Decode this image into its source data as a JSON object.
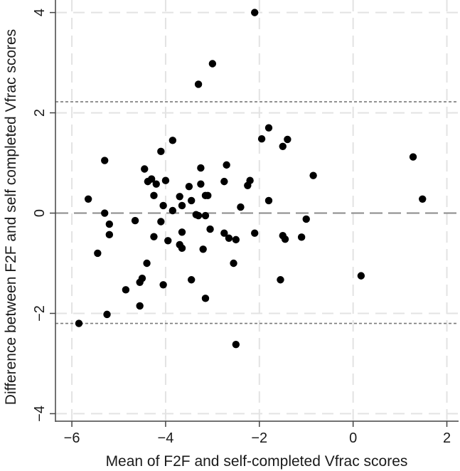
{
  "chart_data": {
    "type": "scatter",
    "title": "",
    "xlabel": "Mean of F2F and self-completed Vfrac scores",
    "ylabel": "Difference between F2F and self completed Vfrac scores",
    "xlim": [
      -6.35,
      2.25
    ],
    "ylim": [
      -4.15,
      4.25
    ],
    "xticks": [
      -6,
      -4,
      -2,
      0,
      2
    ],
    "yticks": [
      -4,
      -2,
      0,
      2,
      4
    ],
    "xtick_labels": [
      "−6",
      "−4",
      "−2",
      "0",
      "2"
    ],
    "ytick_labels": [
      "−4",
      "−2",
      "0",
      "2",
      "4"
    ],
    "grid": true,
    "reference_lines": [
      {
        "kind": "mean",
        "value": 0.0,
        "style": "dashed"
      },
      {
        "kind": "upper-limit",
        "value": 2.22,
        "style": "dotted"
      },
      {
        "kind": "lower-limit",
        "value": -2.2,
        "style": "dotted"
      }
    ],
    "points": [
      {
        "x": -2.1,
        "y": 4.0
      },
      {
        "x": -3.0,
        "y": 2.98
      },
      {
        "x": -3.3,
        "y": 2.57
      },
      {
        "x": -1.8,
        "y": 1.7
      },
      {
        "x": -1.95,
        "y": 1.48
      },
      {
        "x": -1.4,
        "y": 1.47
      },
      {
        "x": -1.5,
        "y": 1.33
      },
      {
        "x": 1.28,
        "y": 1.12
      },
      {
        "x": -5.3,
        "y": 1.05
      },
      {
        "x": -3.85,
        "y": 1.45
      },
      {
        "x": -4.1,
        "y": 1.23
      },
      {
        "x": -2.7,
        "y": 0.96
      },
      {
        "x": -4.45,
        "y": 0.88
      },
      {
        "x": -3.25,
        "y": 0.9
      },
      {
        "x": -0.85,
        "y": 0.75
      },
      {
        "x": -4.3,
        "y": 0.68
      },
      {
        "x": -4.38,
        "y": 0.63
      },
      {
        "x": -4.0,
        "y": 0.65
      },
      {
        "x": -2.75,
        "y": 0.63
      },
      {
        "x": -2.2,
        "y": 0.65
      },
      {
        "x": -4.2,
        "y": 0.58
      },
      {
        "x": -3.5,
        "y": 0.53
      },
      {
        "x": -3.25,
        "y": 0.58
      },
      {
        "x": -2.25,
        "y": 0.55
      },
      {
        "x": -4.25,
        "y": 0.35
      },
      {
        "x": -3.7,
        "y": 0.33
      },
      {
        "x": -3.15,
        "y": 0.35
      },
      {
        "x": -3.1,
        "y": 0.35
      },
      {
        "x": -5.65,
        "y": 0.28
      },
      {
        "x": -1.8,
        "y": 0.25
      },
      {
        "x": 1.48,
        "y": 0.28
      },
      {
        "x": -3.45,
        "y": 0.25
      },
      {
        "x": -4.05,
        "y": 0.15
      },
      {
        "x": -3.65,
        "y": 0.15
      },
      {
        "x": -2.4,
        "y": 0.12
      },
      {
        "x": -3.85,
        "y": 0.05
      },
      {
        "x": -5.3,
        "y": 0.0
      },
      {
        "x": -3.35,
        "y": -0.03
      },
      {
        "x": -3.3,
        "y": -0.05
      },
      {
        "x": -3.15,
        "y": -0.05
      },
      {
        "x": -1.0,
        "y": -0.12
      },
      {
        "x": -4.65,
        "y": -0.15
      },
      {
        "x": -4.1,
        "y": -0.17
      },
      {
        "x": -5.2,
        "y": -0.22
      },
      {
        "x": -3.05,
        "y": -0.32
      },
      {
        "x": -3.65,
        "y": -0.38
      },
      {
        "x": -2.75,
        "y": -0.4
      },
      {
        "x": -2.1,
        "y": -0.4
      },
      {
        "x": -5.2,
        "y": -0.43
      },
      {
        "x": -4.25,
        "y": -0.47
      },
      {
        "x": -1.5,
        "y": -0.45
      },
      {
        "x": -1.1,
        "y": -0.48
      },
      {
        "x": -2.65,
        "y": -0.5
      },
      {
        "x": -1.45,
        "y": -0.52
      },
      {
        "x": -2.5,
        "y": -0.53
      },
      {
        "x": -3.95,
        "y": -0.55
      },
      {
        "x": -3.7,
        "y": -0.63
      },
      {
        "x": -3.65,
        "y": -0.7
      },
      {
        "x": -3.2,
        "y": -0.72
      },
      {
        "x": -5.45,
        "y": -0.8
      },
      {
        "x": -4.4,
        "y": -1.0
      },
      {
        "x": -2.55,
        "y": -1.0
      },
      {
        "x": 0.17,
        "y": -1.25
      },
      {
        "x": -4.5,
        "y": -1.3
      },
      {
        "x": -3.45,
        "y": -1.33
      },
      {
        "x": -1.55,
        "y": -1.33
      },
      {
        "x": -4.55,
        "y": -1.38
      },
      {
        "x": -4.05,
        "y": -1.43
      },
      {
        "x": -4.85,
        "y": -1.53
      },
      {
        "x": -3.15,
        "y": -1.7
      },
      {
        "x": -4.55,
        "y": -1.85
      },
      {
        "x": -5.25,
        "y": -2.02
      },
      {
        "x": -5.85,
        "y": -2.2
      },
      {
        "x": -2.5,
        "y": -2.62
      }
    ]
  }
}
